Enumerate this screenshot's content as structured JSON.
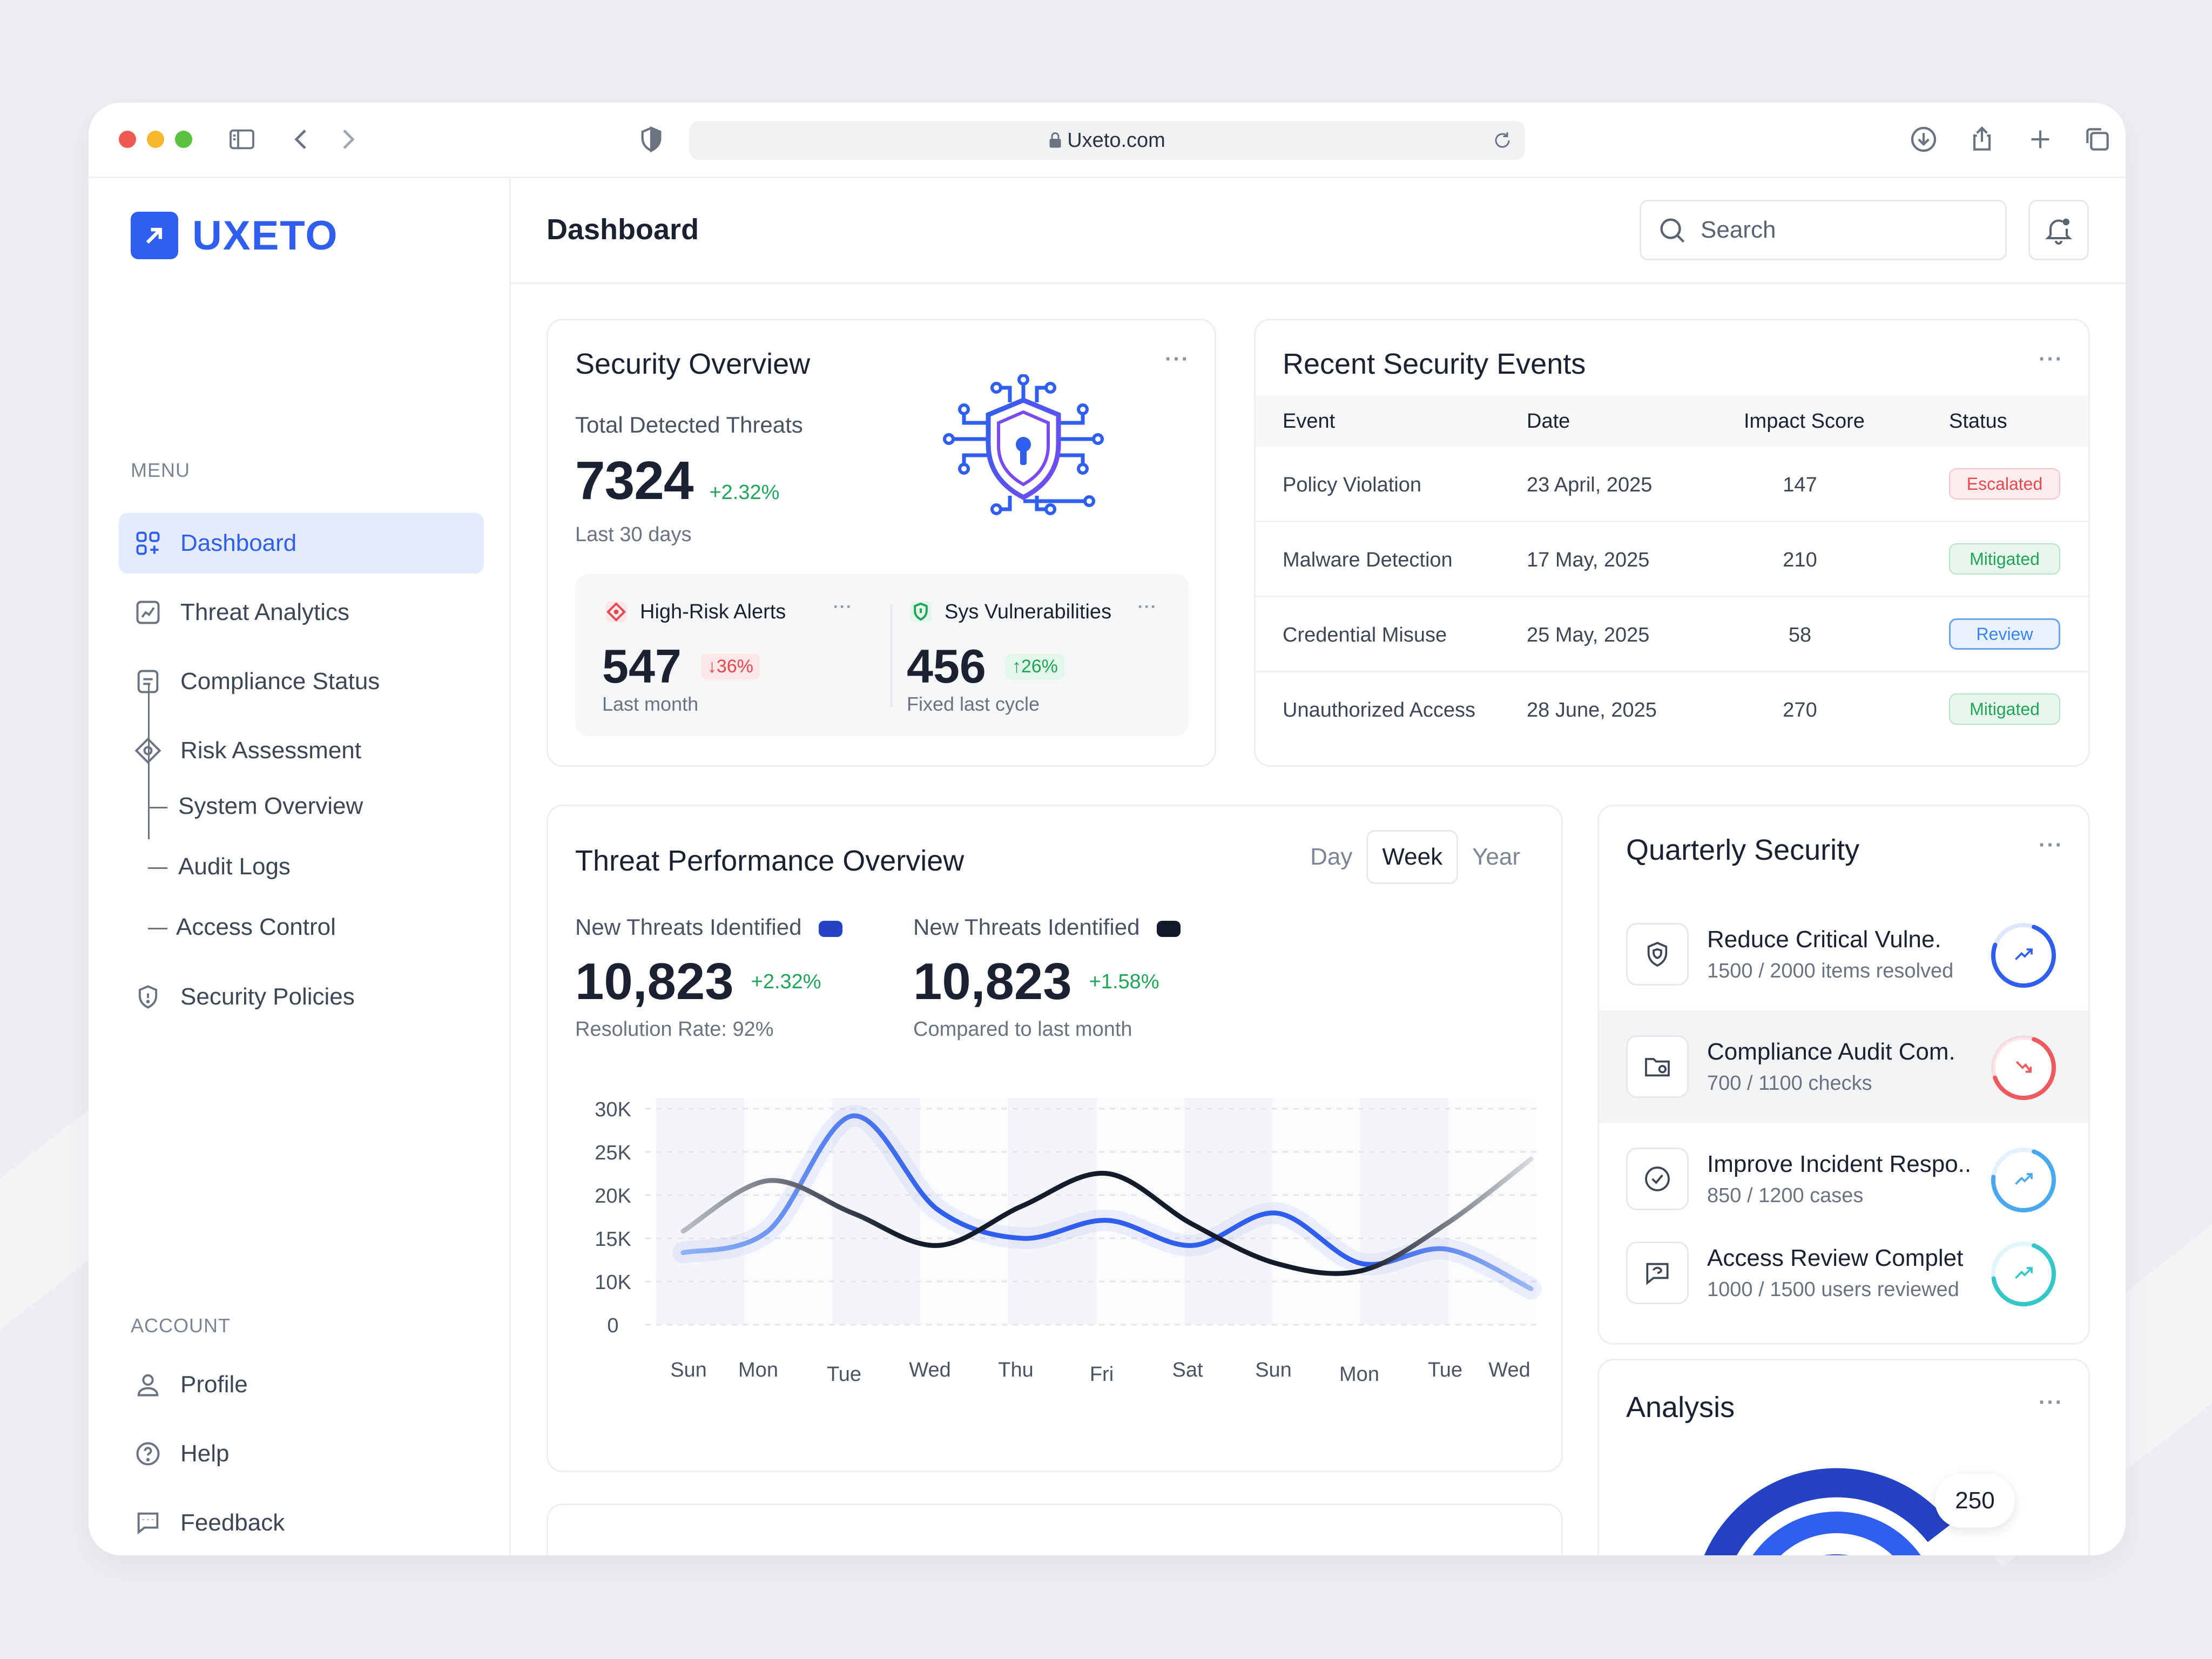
{
  "browser": {
    "url": "Uxeto.com"
  },
  "brand": {
    "name": "UXETO",
    "accent": "#2f5ef0"
  },
  "sidebar": {
    "menu_label": "MENU",
    "items": [
      {
        "label": "Dashboard",
        "icon": "grid-icon",
        "active": true
      },
      {
        "label": "Threat Analytics",
        "icon": "chart-icon"
      },
      {
        "label": "Compliance Status",
        "icon": "document-icon"
      },
      {
        "label": "Risk Assessment",
        "icon": "diamond-icon"
      }
    ],
    "sub_items": [
      "System Overview",
      "Audit Logs",
      "Access Control"
    ],
    "policies": {
      "label": "Security Policies",
      "icon": "shield-icon"
    },
    "account_label": "ACCOUNT",
    "account_items": [
      {
        "label": "Profile",
        "icon": "user-icon"
      },
      {
        "label": "Help",
        "icon": "help-icon"
      },
      {
        "label": "Feedback",
        "icon": "feedback-icon"
      }
    ]
  },
  "header": {
    "title": "Dashboard",
    "search_placeholder": "Search"
  },
  "security_overview": {
    "title": "Security Overview",
    "total_label": "Total Detected Threats",
    "total_value": "7324",
    "total_change": "+2.32%",
    "period": "Last 30 days",
    "high_risk": {
      "label": "High-Risk Alerts",
      "value": "547",
      "change": "↓36%",
      "period": "Last month"
    },
    "vulnerabilities": {
      "label": "Sys Vulnerabilities",
      "value": "456",
      "change": "↑26%",
      "period": "Fixed last cycle"
    }
  },
  "events": {
    "title": "Recent Security Events",
    "columns": [
      "Event",
      "Date",
      "Impact Score",
      "Status"
    ],
    "rows": [
      {
        "event": "Policy Violation",
        "date": "23 April, 2025",
        "score": "147",
        "status": "Escalated",
        "kind": "escalated"
      },
      {
        "event": "Malware Detection",
        "date": "17 May, 2025",
        "score": "210",
        "status": "Mitigated",
        "kind": "mitigated"
      },
      {
        "event": "Credential Misuse",
        "date": "25 May, 2025",
        "score": "58",
        "status": "Review",
        "kind": "review"
      },
      {
        "event": "Unauthorized Access",
        "date": "28 June, 2025",
        "score": "270",
        "status": "Mitigated",
        "kind": "mitigated"
      }
    ]
  },
  "performance": {
    "title": "Threat Performance Overview",
    "tabs": [
      "Day",
      "Week",
      "Year"
    ],
    "active_tab": "Week",
    "metric_a": {
      "label": "New Threats Identified",
      "value": "10,823",
      "change": "+2.32%",
      "note": "Resolution Rate: 92%",
      "color": "#2443c4"
    },
    "metric_b": {
      "label": "New Threats Identified",
      "value": "10,823",
      "change": "+1.58%",
      "note": "Compared to last month",
      "color": "#141b2b"
    }
  },
  "chart_data": {
    "type": "line",
    "categories": [
      "Sun",
      "Mon",
      "Tue",
      "Wed",
      "Thu",
      "Fri",
      "Sat",
      "Sun",
      "Mon",
      "Tue",
      "Wed"
    ],
    "y_ticks": [
      "30K",
      "25K",
      "20K",
      "15K",
      "10K",
      "0"
    ],
    "ylim": [
      0,
      30000
    ],
    "series": [
      {
        "values": [
          10000,
          13000,
          29000,
          16000,
          12000,
          14500,
          11000,
          15500,
          8500,
          10500,
          5000
        ],
        "color": "#2f5ef0"
      },
      {
        "values": [
          13000,
          20000,
          15500,
          11000,
          16500,
          21000,
          14000,
          8500,
          7500,
          14000,
          23000
        ],
        "color": "#141b2b"
      }
    ],
    "grid": true
  },
  "quarterly": {
    "title": "Quarterly Security",
    "items": [
      {
        "title": "Reduce Critical Vulne.",
        "sub": "1500 / 2000 items resolved",
        "progress": 0.75,
        "color": "#2f5ef0",
        "icon": "shield-outline-icon",
        "trend": "trend-up-icon"
      },
      {
        "title": "Compliance Audit Com.",
        "sub": "700 / 1100 checks",
        "progress": 0.64,
        "color": "#ef5a5f",
        "icon": "folder-icon",
        "trend": "trend-down-icon"
      },
      {
        "title": "Improve Incident Respo..",
        "sub": "850 / 1200 cases",
        "progress": 0.71,
        "color": "#4aa8f0",
        "icon": "check-circle-icon",
        "trend": "trend-up-icon"
      },
      {
        "title": "Access Review Complet",
        "sub": "1000 / 1500 users reviewed",
        "progress": 0.67,
        "color": "#35c6c9",
        "icon": "chat-icon",
        "trend": "trend-up-icon"
      }
    ]
  },
  "analysis": {
    "title": "Analysis",
    "value": "250"
  }
}
